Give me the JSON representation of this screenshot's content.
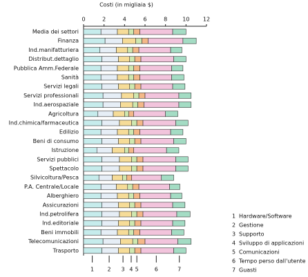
{
  "chart_data": {
    "type": "stacked-bar-horizontal",
    "title": "Costi (in migliaia $)",
    "xlim": [
      0,
      12
    ],
    "xticks": [
      0,
      2,
      4,
      6,
      8,
      10,
      12
    ],
    "categories": [
      "Media dei settori",
      "Finanza",
      "Ind.manifatturiera",
      "Distribut.dettaglio",
      "Pubblica Amm.Federale",
      "Sanità",
      "Servizi legali",
      "Servizi professionali",
      "Ind.aerospaziale",
      "Agricoltura",
      "Ind.chimica/farmaceutica",
      "Edilizio",
      "Beni di consumo",
      "Istruzione",
      "Servizi pubblici",
      "Spettacolo",
      "Silvicoltura/Pesca",
      "P.A. Centrale/Locale",
      "Alberghiero",
      "Assicurazioni",
      "Ind.petrolifera",
      "Ind.editoriale",
      "Beni immobili",
      "Telecomunicazioni",
      "Trasporto"
    ],
    "series_numbers": [
      "1",
      "2",
      "3",
      "4",
      "5",
      "6",
      "7"
    ],
    "series": [
      {
        "name": "Hardware/Software",
        "color": "#c6ecec",
        "values": [
          1.7,
          2.1,
          1.6,
          1.8,
          1.7,
          1.7,
          1.8,
          1.9,
          1.9,
          1.4,
          1.8,
          1.7,
          1.8,
          1.3,
          1.8,
          1.8,
          1.5,
          1.7,
          1.7,
          1.8,
          1.8,
          1.8,
          1.7,
          1.9,
          1.8
        ]
      },
      {
        "name": "Gestione",
        "color": "#e6eef6",
        "values": [
          1.6,
          1.7,
          1.6,
          1.6,
          1.6,
          1.6,
          1.6,
          1.8,
          1.7,
          1.5,
          1.7,
          1.6,
          1.6,
          1.5,
          1.7,
          1.7,
          1.3,
          1.5,
          1.6,
          1.6,
          1.7,
          1.6,
          1.6,
          1.7,
          1.6
        ]
      },
      {
        "name": "Supporto",
        "color": "#f6dc98",
        "values": [
          1.1,
          1.3,
          1.1,
          1.1,
          1.1,
          1.1,
          1.1,
          1.2,
          1.2,
          1.1,
          1.2,
          1.1,
          1.1,
          1.2,
          1.2,
          1.2,
          1.0,
          1.1,
          1.1,
          1.1,
          1.2,
          1.1,
          1.1,
          1.2,
          1.1
        ]
      },
      {
        "name": "Sviluppo di applicazioni",
        "color": "#cfe8b0",
        "values": [
          0.5,
          0.6,
          0.5,
          0.5,
          0.5,
          0.5,
          0.5,
          0.5,
          0.5,
          0.4,
          0.5,
          0.5,
          0.5,
          0.4,
          0.5,
          0.5,
          0.4,
          0.5,
          0.5,
          0.5,
          0.5,
          0.5,
          0.5,
          0.5,
          0.5
        ]
      },
      {
        "name": "Comunicazioni",
        "color": "#f4b888",
        "values": [
          0.6,
          0.6,
          0.6,
          0.6,
          0.6,
          0.6,
          0.6,
          0.6,
          0.6,
          0.5,
          0.6,
          0.6,
          0.6,
          0.5,
          0.6,
          0.6,
          0.5,
          0.6,
          0.6,
          0.6,
          0.6,
          0.6,
          0.6,
          0.7,
          0.6
        ]
      },
      {
        "name": "Tempo perso dall'utente",
        "color": "#f2c4dc",
        "values": [
          3.2,
          3.4,
          3.1,
          3.2,
          3.1,
          3.1,
          3.1,
          3.3,
          3.4,
          3.1,
          3.2,
          3.0,
          3.2,
          3.2,
          3.2,
          3.2,
          2.9,
          3.0,
          3.0,
          3.1,
          3.3,
          3.1,
          3.1,
          3.2,
          3.2
        ]
      },
      {
        "name": "Guasti",
        "color": "#a4dcc4",
        "values": [
          1.3,
          1.3,
          1.1,
          1.2,
          1.1,
          1.2,
          1.2,
          1.2,
          1.2,
          1.2,
          1.2,
          1.2,
          1.2,
          1.2,
          1.2,
          1.2,
          1.2,
          1.0,
          1.1,
          1.2,
          1.3,
          1.2,
          1.2,
          1.3,
          1.2
        ]
      }
    ]
  }
}
